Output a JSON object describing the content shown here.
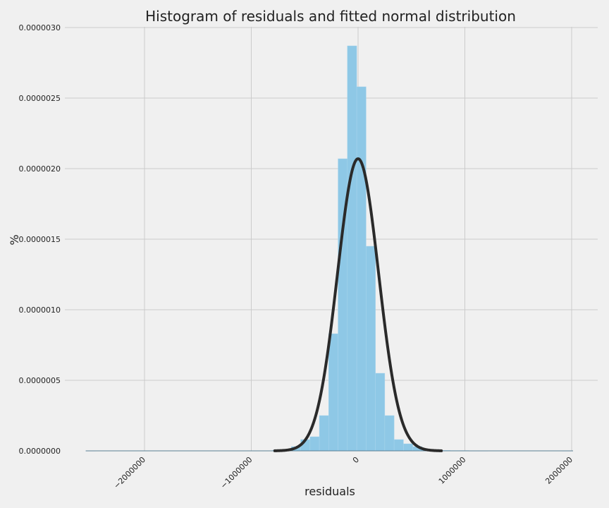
{
  "chart_data": {
    "type": "bar",
    "title": "Histogram of residuals and fitted normal distribution",
    "xlabel": "residuals",
    "ylabel": "%",
    "xlim": [
      -2550000,
      2050000
    ],
    "ylim": [
      0,
      3e-06
    ],
    "x_ticks": [
      -2000000,
      -1000000,
      0,
      1000000,
      2000000
    ],
    "x_tick_labels": [
      "−2000000",
      "−1000000",
      "0",
      "1000000",
      "2000000"
    ],
    "y_ticks": [
      0,
      5e-07,
      1e-06,
      1.5e-06,
      2e-06,
      2.5e-06,
      3e-06
    ],
    "y_tick_labels": [
      "0.0000000",
      "0.0000005",
      "0.0000010",
      "0.0000015",
      "0.0000020",
      "0.0000025",
      "0.0000030"
    ],
    "grid": true,
    "bar_color": "#8ec8e6",
    "curve_color": "#2a2a2a",
    "bin_edges": [
      -2550000,
      -2462500,
      -2375000,
      -2287500,
      -2200000,
      -2112500,
      -2025000,
      -1937500,
      -1850000,
      -1762500,
      -1675000,
      -1587500,
      -1500000,
      -1412500,
      -1325000,
      -1237500,
      -1150000,
      -1062500,
      -975000,
      -887500,
      -800000,
      -712500,
      -625000,
      -537500,
      -450000,
      -362500,
      -275000,
      -187500,
      -100000,
      -12500,
      75000,
      162500,
      250000,
      337500,
      425000,
      512500,
      600000,
      687500,
      775000,
      862500,
      950000,
      1037500,
      1125000,
      1212500,
      1300000,
      1387500,
      1475000,
      1562500,
      1650000,
      1737500,
      1825000,
      1912500,
      2000000
    ],
    "bin_values": [
      1e-09,
      0,
      0,
      0,
      0,
      0,
      0,
      0,
      0,
      0,
      0,
      0,
      0,
      0,
      0,
      0,
      0,
      0,
      0,
      0,
      5e-09,
      1e-08,
      3e-08,
      8e-08,
      1e-07,
      2.5e-07,
      8.3e-07,
      2.07e-06,
      2.87e-06,
      2.58e-06,
      1.45e-06,
      5.5e-07,
      2.5e-07,
      8e-08,
      5e-08,
      3e-08,
      1e-08,
      5e-09,
      3e-09,
      2e-09,
      2e-09,
      1e-09,
      1e-09,
      0,
      0,
      0,
      0,
      0,
      0,
      0,
      0,
      1e-09
    ],
    "fitted_normal": {
      "mean": 0,
      "peak": 2.07e-06
    }
  }
}
